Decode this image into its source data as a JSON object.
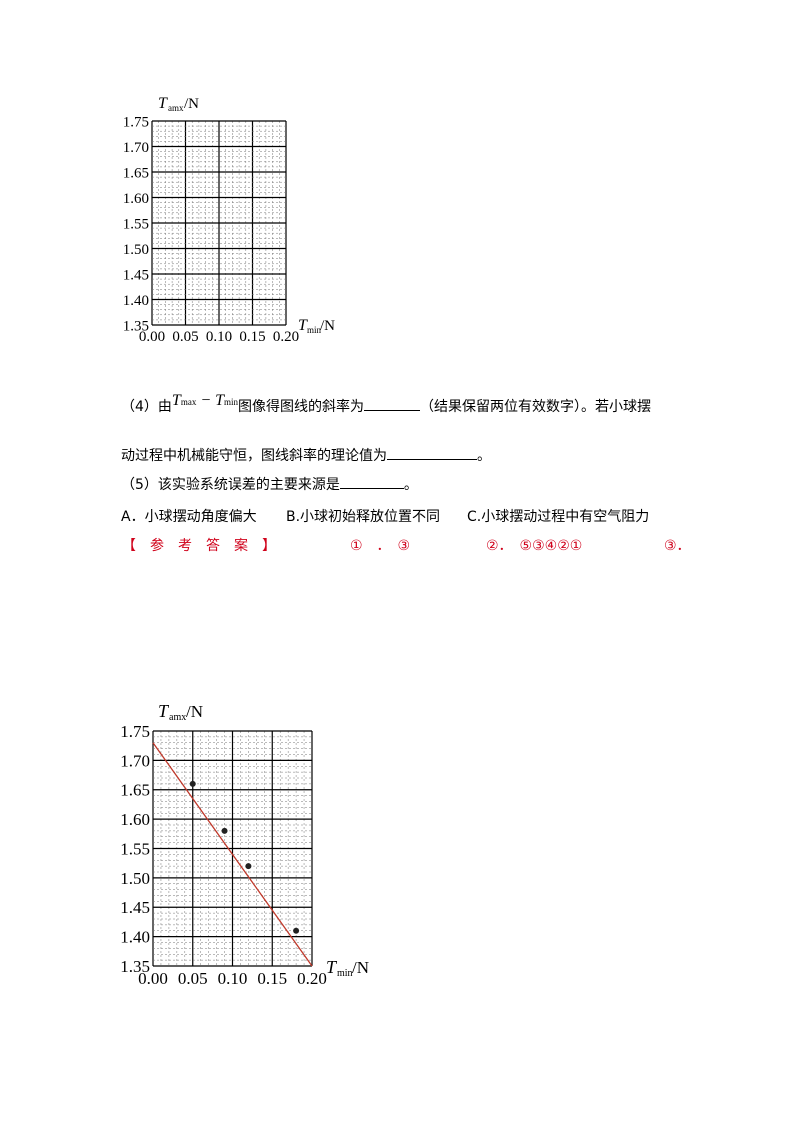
{
  "chart_data": [
    {
      "type": "scatter",
      "title": "",
      "xlabel": "T min /N",
      "ylabel": "T amx /N",
      "xlim": [
        0.0,
        0.2
      ],
      "ylim": [
        1.35,
        1.75
      ],
      "x_ticks": [
        "0.00",
        "0.05",
        "0.10",
        "0.15",
        "0.20"
      ],
      "y_ticks": [
        "1.35",
        "1.40",
        "1.45",
        "1.50",
        "1.55",
        "1.60",
        "1.65",
        "1.70",
        "1.75"
      ],
      "grid": true,
      "series": []
    },
    {
      "type": "scatter",
      "title": "",
      "xlabel": "T min /N",
      "ylabel": "T amx /N",
      "xlim": [
        0.0,
        0.2
      ],
      "ylim": [
        1.35,
        1.75
      ],
      "x_ticks": [
        "0.00",
        "0.05",
        "0.10",
        "0.15",
        "0.20"
      ],
      "y_ticks": [
        "1.35",
        "1.40",
        "1.45",
        "1.50",
        "1.55",
        "1.60",
        "1.65",
        "1.70",
        "1.75"
      ],
      "grid": true,
      "series": [
        {
          "points": [
            [
              0.05,
              1.66
            ],
            [
              0.09,
              1.58
            ],
            [
              0.12,
              1.52
            ],
            [
              0.18,
              1.41
            ]
          ]
        }
      ],
      "fit_line": {
        "x": [
          0.0,
          0.2
        ],
        "y": [
          1.73,
          1.35
        ],
        "color": "#c0392b"
      }
    }
  ],
  "chart1_labels": {
    "y_var": "T",
    "y_sub": "amx",
    "y_unit": "/N",
    "x_var": "T",
    "x_sub": "min",
    "x_unit": "/N"
  },
  "chart2_labels": {
    "y_var": "T",
    "y_sub": "amx",
    "y_unit": "/N",
    "x_var": "T",
    "x_sub": "min",
    "x_unit": "/N"
  },
  "q4": {
    "prefix": "（4）由",
    "t_max_var": "T",
    "t_max_sub": "max",
    "minus": " − ",
    "t_min_var": "T",
    "t_min_sub": "min",
    "text1": "图像得图线的斜率为",
    "text2": "（结果保留两位有效数字）。若小球摆",
    "line2": "动过程中机械能守恒，图线斜率的理论值为",
    "line2_end": "。"
  },
  "q5": {
    "text": "（5）该实验系统误差的主要来源是",
    "end": "。",
    "opt_a": "A．小球摆动角度偏大",
    "opt_b": "B.小球初始释放位置不同",
    "opt_c": "C.小球摆动过程中有空气阻力"
  },
  "answer": {
    "label": "【　参　考　答　案　】",
    "a1": "①　．　③",
    "a2": "②．　⑤③④②①",
    "a3": "③．"
  }
}
